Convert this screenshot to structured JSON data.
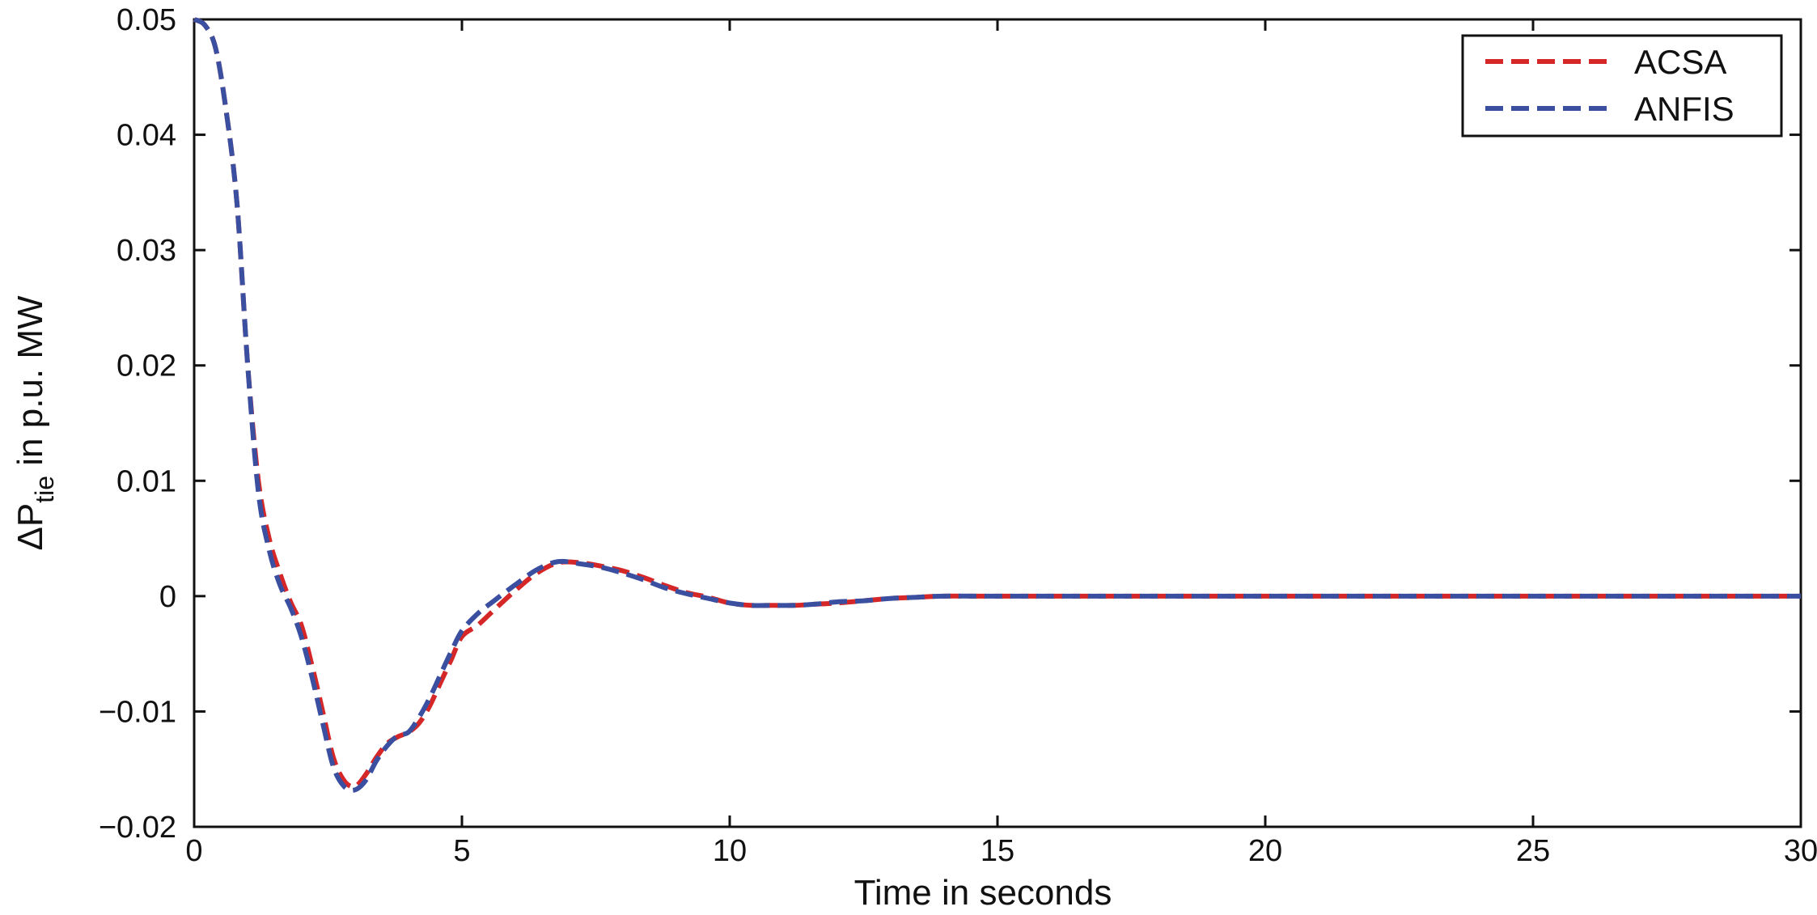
{
  "chart_data": {
    "type": "line",
    "title": "",
    "xlabel": "Time in seconds",
    "ylabel": {
      "prefix": "ΔP",
      "subscript": "tie",
      "suffix": " in p.u. MW"
    },
    "xlim": [
      0,
      30
    ],
    "ylim": [
      -0.02,
      0.05
    ],
    "x_ticks": [
      0,
      5,
      10,
      15,
      20,
      25,
      30
    ],
    "x_tick_labels": [
      "0",
      "5",
      "10",
      "15",
      "20",
      "25",
      "30"
    ],
    "y_ticks": [
      -0.02,
      -0.01,
      0,
      0.01,
      0.02,
      0.03,
      0.04,
      0.05
    ],
    "y_tick_labels": [
      "−0.02",
      "−0.01",
      "0",
      "0.01",
      "0.02",
      "0.03",
      "0.04",
      "0.05"
    ],
    "grid": false,
    "legend_position": "top-right",
    "series": [
      {
        "name": "ACSA",
        "color": "#d62728",
        "dash": "dashed",
        "x": [
          0,
          0.2,
          0.4,
          0.6,
          0.8,
          1.0,
          1.2,
          1.4,
          1.6,
          1.8,
          2.0,
          2.2,
          2.4,
          2.6,
          2.8,
          3.0,
          3.2,
          3.4,
          3.6,
          3.8,
          4.0,
          4.2,
          4.4,
          4.6,
          4.8,
          5.0,
          5.3,
          5.6,
          6.0,
          6.4,
          6.8,
          7.2,
          7.6,
          8.0,
          8.4,
          8.8,
          9.2,
          9.6,
          10.0,
          10.4,
          10.8,
          11.2,
          11.6,
          12.0,
          12.5,
          13.0,
          13.5,
          14.0,
          15,
          20,
          25,
          30
        ],
        "y": [
          0.05,
          0.0495,
          0.0475,
          0.042,
          0.034,
          0.02,
          0.01,
          0.005,
          0.002,
          -0.0005,
          -0.0025,
          -0.006,
          -0.01,
          -0.014,
          -0.016,
          -0.0165,
          -0.0155,
          -0.014,
          -0.0128,
          -0.0122,
          -0.0118,
          -0.011,
          -0.0095,
          -0.0075,
          -0.0055,
          -0.0035,
          -0.0025,
          -0.0012,
          0.0005,
          0.002,
          0.0029,
          0.0029,
          0.0026,
          0.0022,
          0.0016,
          0.0009,
          0.0003,
          -0.0001,
          -0.0006,
          -0.0008,
          -0.0008,
          -0.0008,
          -0.0007,
          -0.0006,
          -0.0004,
          -0.0002,
          -0.0001,
          0.0,
          0.0,
          0.0,
          0.0,
          0.0
        ]
      },
      {
        "name": "ANFIS",
        "color": "#3b4fa0",
        "dash": "dashed",
        "x": [
          0,
          0.2,
          0.4,
          0.6,
          0.8,
          1.0,
          1.2,
          1.4,
          1.6,
          1.8,
          2.0,
          2.2,
          2.4,
          2.6,
          2.8,
          3.0,
          3.2,
          3.4,
          3.6,
          3.8,
          4.0,
          4.2,
          4.4,
          4.6,
          4.8,
          5.0,
          5.3,
          5.6,
          6.0,
          6.4,
          6.8,
          7.2,
          7.6,
          8.0,
          8.4,
          8.8,
          9.2,
          9.6,
          10.0,
          10.4,
          10.8,
          11.2,
          11.6,
          12.0,
          12.5,
          13.0,
          13.5,
          14.0,
          15,
          20,
          25,
          30
        ],
        "y": [
          0.05,
          0.0495,
          0.0475,
          0.042,
          0.034,
          0.02,
          0.009,
          0.004,
          0.001,
          -0.001,
          -0.0035,
          -0.007,
          -0.011,
          -0.0148,
          -0.0165,
          -0.0168,
          -0.016,
          -0.0143,
          -0.013,
          -0.0121,
          -0.0118,
          -0.0105,
          -0.0088,
          -0.0068,
          -0.0048,
          -0.003,
          -0.0015,
          -0.0004,
          0.001,
          0.0023,
          0.003,
          0.0028,
          0.0025,
          0.002,
          0.0014,
          0.0007,
          0.0002,
          -0.0002,
          -0.0006,
          -0.0008,
          -0.0008,
          -0.0008,
          -0.0007,
          -0.0005,
          -0.0004,
          -0.0002,
          -0.0001,
          0.0,
          0.0,
          0.0,
          0.0,
          0.0
        ]
      }
    ]
  }
}
